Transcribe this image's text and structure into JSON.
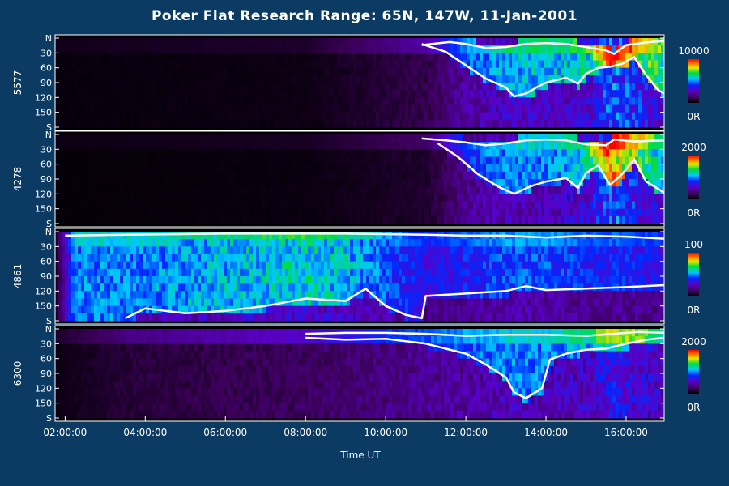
{
  "chart_data": {
    "type": "heatmap",
    "title": "Poker Flat Research Range: 65N, 147W, 11-Jan-2001",
    "xlabel": "Time UT",
    "x_range_hours": [
      1.75,
      16.95
    ],
    "x_ticks": [
      "02:00:00",
      "04:00:00",
      "06:00:00",
      "08:00:00",
      "10:00:00",
      "12:00:00",
      "14:00:00",
      "16:00:00"
    ],
    "x_tick_hours": [
      2,
      4,
      6,
      8,
      10,
      12,
      14,
      16
    ],
    "y_ticks": [
      "N",
      "30",
      "60",
      "90",
      "120",
      "150",
      "S"
    ],
    "y_tick_values": [
      0,
      30,
      60,
      90,
      120,
      150,
      180
    ],
    "ylim": [
      0,
      180
    ],
    "colormap": "rainbow: black-purple-blue-cyan-green-yellow-red",
    "panels": [
      {
        "label": "5577",
        "scale_max": "10000",
        "scale_min": "0R",
        "boundary_top": [
          [
            10.9,
            14
          ],
          [
            11.6,
            8
          ],
          [
            12.0,
            12
          ],
          [
            12.5,
            20
          ],
          [
            13.0,
            18
          ],
          [
            13.5,
            12
          ],
          [
            14.0,
            10
          ],
          [
            14.5,
            12
          ],
          [
            15.0,
            18
          ],
          [
            15.5,
            25
          ],
          [
            15.7,
            32
          ],
          [
            16.0,
            14
          ],
          [
            16.6,
            8
          ],
          [
            16.95,
            6
          ]
        ],
        "boundary_bottom": [
          [
            10.9,
            12
          ],
          [
            11.5,
            28
          ],
          [
            12.0,
            55
          ],
          [
            12.5,
            82
          ],
          [
            13.0,
            100
          ],
          [
            13.2,
            118
          ],
          [
            13.5,
            112
          ],
          [
            13.8,
            98
          ],
          [
            14.0,
            90
          ],
          [
            14.5,
            80
          ],
          [
            14.8,
            92
          ],
          [
            15.0,
            72
          ],
          [
            15.3,
            60
          ],
          [
            15.6,
            58
          ],
          [
            15.9,
            52
          ],
          [
            16.2,
            38
          ],
          [
            16.5,
            75
          ],
          [
            16.8,
            105
          ],
          [
            16.95,
            112
          ]
        ],
        "intensity": [
          [
            1.75,
            0.03
          ],
          [
            8.0,
            0.05
          ],
          [
            11.0,
            0.2
          ],
          [
            12.0,
            0.45
          ],
          [
            13.0,
            0.55
          ],
          [
            14.0,
            0.55
          ],
          [
            15.0,
            0.6
          ],
          [
            15.6,
            0.9
          ],
          [
            16.3,
            0.75
          ],
          [
            16.95,
            0.6
          ]
        ]
      },
      {
        "label": "4278",
        "scale_max": "2000",
        "scale_min": "0R",
        "boundary_top": [
          [
            10.9,
            8
          ],
          [
            11.5,
            12
          ],
          [
            12.0,
            16
          ],
          [
            12.5,
            22
          ],
          [
            13.0,
            18
          ],
          [
            13.5,
            12
          ],
          [
            14.0,
            10
          ],
          [
            14.5,
            12
          ],
          [
            15.0,
            20
          ],
          [
            15.5,
            22
          ],
          [
            15.7,
            10
          ],
          [
            16.2,
            14
          ],
          [
            16.95,
            12
          ]
        ],
        "boundary_bottom": [
          [
            11.3,
            18
          ],
          [
            11.8,
            45
          ],
          [
            12.3,
            80
          ],
          [
            12.8,
            105
          ],
          [
            13.2,
            120
          ],
          [
            13.6,
            105
          ],
          [
            14.0,
            95
          ],
          [
            14.5,
            88
          ],
          [
            14.8,
            108
          ],
          [
            15.0,
            78
          ],
          [
            15.3,
            62
          ],
          [
            15.6,
            102
          ],
          [
            15.9,
            80
          ],
          [
            16.2,
            50
          ],
          [
            16.5,
            95
          ],
          [
            16.8,
            110
          ],
          [
            16.95,
            118
          ]
        ],
        "intensity": [
          [
            1.75,
            0.02
          ],
          [
            8.0,
            0.04
          ],
          [
            11.0,
            0.12
          ],
          [
            12.0,
            0.4
          ],
          [
            13.0,
            0.5
          ],
          [
            14.0,
            0.5
          ],
          [
            15.0,
            0.6
          ],
          [
            15.6,
            0.9
          ],
          [
            16.3,
            0.7
          ],
          [
            16.95,
            0.55
          ]
        ]
      },
      {
        "label": "4861",
        "scale_max": "100",
        "scale_min": "0R",
        "boundary_top": [
          [
            2.0,
            8
          ],
          [
            3.5,
            6
          ],
          [
            6.0,
            4
          ],
          [
            9.0,
            4
          ],
          [
            11.0,
            6
          ],
          [
            12.0,
            8
          ],
          [
            13.0,
            8
          ],
          [
            14.0,
            12
          ],
          [
            15.0,
            8
          ],
          [
            16.0,
            10
          ],
          [
            16.95,
            14
          ]
        ],
        "boundary_bottom": [
          [
            3.5,
            175
          ],
          [
            4.0,
            155
          ],
          [
            5.0,
            165
          ],
          [
            6.0,
            160
          ],
          [
            7.0,
            150
          ],
          [
            8.0,
            135
          ],
          [
            9.0,
            140
          ],
          [
            9.5,
            115
          ],
          [
            10.0,
            150
          ],
          [
            10.5,
            168
          ],
          [
            10.9,
            175
          ],
          [
            11.0,
            130
          ],
          [
            12.0,
            125
          ],
          [
            13.0,
            120
          ],
          [
            13.5,
            110
          ],
          [
            14.0,
            118
          ],
          [
            15.0,
            115
          ],
          [
            16.0,
            112
          ],
          [
            16.95,
            108
          ]
        ],
        "intensity": [
          [
            1.75,
            0.05
          ],
          [
            2.2,
            0.5
          ],
          [
            4.0,
            0.5
          ],
          [
            6.0,
            0.55
          ],
          [
            8.0,
            0.6
          ],
          [
            9.0,
            0.55
          ],
          [
            10.0,
            0.45
          ],
          [
            11.0,
            0.35
          ],
          [
            12.0,
            0.4
          ],
          [
            13.0,
            0.45
          ],
          [
            14.0,
            0.45
          ],
          [
            15.0,
            0.4
          ],
          [
            16.0,
            0.4
          ],
          [
            16.95,
            0.35
          ]
        ]
      },
      {
        "label": "6300",
        "scale_max": "2000",
        "scale_min": "0R",
        "boundary_top": [
          [
            8.0,
            10
          ],
          [
            9.0,
            8
          ],
          [
            10.0,
            8
          ],
          [
            11.0,
            10
          ],
          [
            12.0,
            14
          ],
          [
            13.0,
            12
          ],
          [
            14.0,
            12
          ],
          [
            15.0,
            14
          ],
          [
            15.7,
            10
          ],
          [
            16.3,
            6
          ],
          [
            16.95,
            8
          ]
        ],
        "boundary_bottom": [
          [
            8.0,
            18
          ],
          [
            9.0,
            22
          ],
          [
            10.0,
            20
          ],
          [
            11.0,
            30
          ],
          [
            12.0,
            50
          ],
          [
            12.5,
            72
          ],
          [
            13.0,
            98
          ],
          [
            13.2,
            128
          ],
          [
            13.5,
            140
          ],
          [
            13.9,
            120
          ],
          [
            14.1,
            62
          ],
          [
            14.5,
            50
          ],
          [
            15.0,
            42
          ],
          [
            15.5,
            40
          ],
          [
            16.0,
            30
          ],
          [
            16.5,
            22
          ],
          [
            16.95,
            18
          ]
        ],
        "intensity": [
          [
            1.75,
            0.05
          ],
          [
            3.5,
            0.15
          ],
          [
            8.0,
            0.25
          ],
          [
            10.0,
            0.35
          ],
          [
            12.0,
            0.45
          ],
          [
            13.0,
            0.5
          ],
          [
            14.0,
            0.5
          ],
          [
            15.0,
            0.55
          ],
          [
            15.6,
            0.7
          ],
          [
            16.5,
            0.6
          ],
          [
            16.95,
            0.5
          ]
        ]
      }
    ]
  }
}
